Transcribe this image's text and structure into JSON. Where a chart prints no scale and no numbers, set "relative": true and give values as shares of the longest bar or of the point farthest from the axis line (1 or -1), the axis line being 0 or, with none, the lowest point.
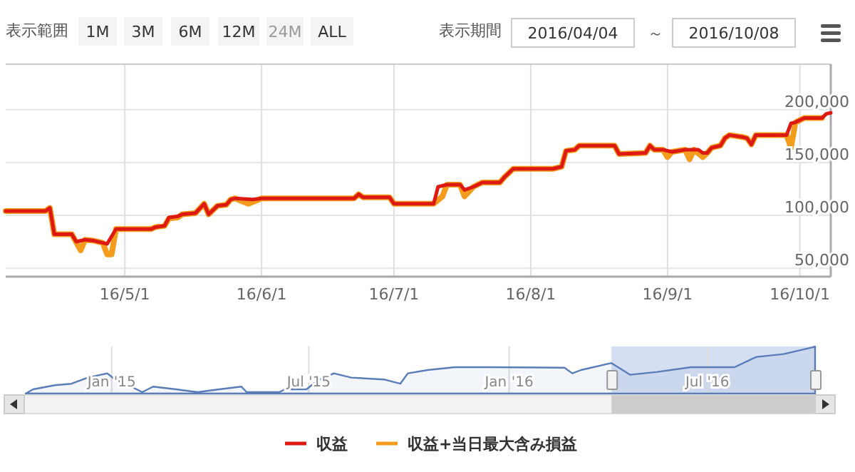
{
  "chart_data": [
    {
      "type": "line",
      "annotations": [
        "表示範囲",
        "1M",
        "3M",
        "6M",
        "12M",
        "24M",
        "ALL",
        "表示期間",
        "2016/04/04",
        "～",
        "2016/10/08"
      ],
      "xlim": [
        "2016-04-04",
        "2016-10-08"
      ],
      "xticks": [
        {
          "value": "2016-05-01",
          "label": "16/5/1"
        },
        {
          "value": "2016-06-01",
          "label": "16/6/1"
        },
        {
          "value": "2016-07-01",
          "label": "16/7/1"
        },
        {
          "value": "2016-08-01",
          "label": "16/8/1"
        },
        {
          "value": "2016-09-01",
          "label": "16/9/1"
        },
        {
          "value": "2016-10-01",
          "label": "16/10/1"
        }
      ],
      "ylim": [
        42000,
        243000
      ],
      "yticks": [
        {
          "value": 50000,
          "label": "50,000"
        },
        {
          "value": 100000,
          "label": "100,000"
        },
        {
          "value": 150000,
          "label": "150,000"
        },
        {
          "value": 200000,
          "label": "200,000"
        }
      ],
      "grid": true,
      "legend": "bottom",
      "series": [
        {
          "name": "収益+当日最大含み損益",
          "color": "#f39c1e",
          "x": [
            "2016-04-04",
            "2016-04-13",
            "2016-04-14",
            "2016-04-15",
            "2016-04-19",
            "2016-04-21",
            "2016-04-22",
            "2016-04-24",
            "2016-04-26",
            "2016-04-27",
            "2016-04-28",
            "2016-04-29",
            "2016-05-07",
            "2016-05-08",
            "2016-05-10",
            "2016-05-11",
            "2016-05-13",
            "2016-05-14",
            "2016-05-17",
            "2016-05-19",
            "2016-05-20",
            "2016-05-22",
            "2016-05-24",
            "2016-05-25",
            "2016-05-26",
            "2016-05-29",
            "2016-06-01",
            "2016-06-22",
            "2016-06-23",
            "2016-06-24",
            "2016-06-30",
            "2016-07-01",
            "2016-07-10",
            "2016-07-12",
            "2016-07-13",
            "2016-07-16",
            "2016-07-17",
            "2016-07-19",
            "2016-07-21",
            "2016-07-25",
            "2016-07-26",
            "2016-07-28",
            "2016-08-06",
            "2016-08-08",
            "2016-08-09",
            "2016-08-11",
            "2016-08-12",
            "2016-08-20",
            "2016-08-21",
            "2016-08-27",
            "2016-08-28",
            "2016-08-29",
            "2016-08-31",
            "2016-09-01",
            "2016-09-02",
            "2016-09-05",
            "2016-09-06",
            "2016-09-07",
            "2016-09-09",
            "2016-09-10",
            "2016-09-11",
            "2016-09-13",
            "2016-09-14",
            "2016-09-15",
            "2016-09-18",
            "2016-09-19",
            "2016-09-20",
            "2016-09-21",
            "2016-09-28",
            "2016-09-29",
            "2016-09-30",
            "2016-10-02",
            "2016-10-06"
          ],
          "values": [
            104000,
            104000,
            107000,
            82000,
            82000,
            67000,
            77000,
            76000,
            74000,
            63000,
            63000,
            87000,
            87000,
            89000,
            90000,
            97000,
            98000,
            101000,
            102000,
            111000,
            101000,
            109000,
            110000,
            115000,
            116000,
            111000,
            116000,
            116000,
            120000,
            117000,
            117000,
            111000,
            111000,
            118000,
            129000,
            129000,
            118000,
            127000,
            131000,
            131000,
            136000,
            144000,
            144000,
            146000,
            161000,
            162000,
            166000,
            166000,
            158000,
            159000,
            166000,
            162000,
            162000,
            155000,
            160000,
            162000,
            153000,
            162000,
            155000,
            159000,
            164000,
            166000,
            173000,
            176000,
            174000,
            173000,
            167000,
            176000,
            176000,
            164000,
            188000,
            192000,
            192000
          ]
        },
        {
          "name": "収益",
          "color": "#dd1a12",
          "x": [
            "2016-04-04",
            "2016-04-13",
            "2016-04-14",
            "2016-04-15",
            "2016-04-19",
            "2016-04-20",
            "2016-04-22",
            "2016-04-24",
            "2016-04-26",
            "2016-04-27",
            "2016-04-29",
            "2016-05-07",
            "2016-05-08",
            "2016-05-10",
            "2016-05-11",
            "2016-05-13",
            "2016-05-14",
            "2016-05-17",
            "2016-05-19",
            "2016-05-20",
            "2016-05-22",
            "2016-05-24",
            "2016-05-25",
            "2016-05-26",
            "2016-05-30",
            "2016-06-01",
            "2016-06-22",
            "2016-06-23",
            "2016-06-24",
            "2016-06-30",
            "2016-07-01",
            "2016-07-10",
            "2016-07-11",
            "2016-07-13",
            "2016-07-16",
            "2016-07-17",
            "2016-07-19",
            "2016-07-21",
            "2016-07-25",
            "2016-07-26",
            "2016-07-28",
            "2016-08-06",
            "2016-08-08",
            "2016-08-09",
            "2016-08-11",
            "2016-08-12",
            "2016-08-20",
            "2016-08-21",
            "2016-08-27",
            "2016-08-28",
            "2016-08-29",
            "2016-08-31",
            "2016-09-02",
            "2016-09-05",
            "2016-09-08",
            "2016-09-09",
            "2016-09-10",
            "2016-09-11",
            "2016-09-13",
            "2016-09-14",
            "2016-09-15",
            "2016-09-18",
            "2016-09-19",
            "2016-09-20",
            "2016-09-21",
            "2016-09-28",
            "2016-09-29",
            "2016-09-30",
            "2016-10-02",
            "2016-10-06",
            "2016-10-07",
            "2016-10-08"
          ],
          "values": [
            104000,
            104000,
            107000,
            82000,
            82000,
            75000,
            77000,
            76000,
            74000,
            73000,
            87000,
            87000,
            89000,
            90000,
            98000,
            99000,
            101000,
            102000,
            111000,
            101000,
            109000,
            110000,
            115000,
            116000,
            115000,
            116000,
            116000,
            120000,
            117000,
            117000,
            111000,
            111000,
            127000,
            129000,
            129000,
            124000,
            127000,
            131000,
            131000,
            136000,
            144000,
            144000,
            146000,
            161000,
            162000,
            166000,
            166000,
            158000,
            159000,
            166000,
            162000,
            162000,
            160000,
            162000,
            162000,
            159000,
            159000,
            164000,
            166000,
            173000,
            176000,
            174000,
            173000,
            167000,
            176000,
            176000,
            187000,
            188000,
            192000,
            192000,
            196000,
            197000
          ]
        }
      ]
    },
    {
      "type": "area",
      "relative": true,
      "tick_labels": "x",
      "xlim": [
        "2014-10-14",
        "2016-10-08"
      ],
      "xticks": [
        {
          "value": "2015-01-01",
          "label": "Jan '15"
        },
        {
          "value": "2015-07-01",
          "label": "Jul '15"
        },
        {
          "value": "2016-01-01",
          "label": "Jan '16"
        },
        {
          "value": "2016-07-01",
          "label": "Jul '16"
        }
      ],
      "grid": "x",
      "bands": [
        {
          "axis": "x",
          "from": "2016-04-04",
          "to": "2016-10-08",
          "color": "#c9d7ee"
        }
      ],
      "series": [
        {
          "color": "#5a7db8",
          "x": [
            "2014-10-14",
            "2014-10-21",
            "2014-11-10",
            "2014-11-25",
            "2014-12-10",
            "2014-12-28",
            "2015-01-04",
            "2015-01-19",
            "2015-01-29",
            "2015-02-08",
            "2015-03-01",
            "2015-03-21",
            "2015-04-10",
            "2015-04-30",
            "2015-05-05",
            "2015-06-04",
            "2015-06-09",
            "2015-06-29",
            "2015-07-09",
            "2015-07-24",
            "2015-08-09",
            "2015-09-08",
            "2015-09-23",
            "2015-09-30",
            "2015-10-18",
            "2015-11-12",
            "2015-12-17",
            "2016-02-21",
            "2016-02-28",
            "2016-03-07",
            "2016-04-04",
            "2016-04-21",
            "2016-05-16",
            "2016-06-16",
            "2016-07-26",
            "2016-08-15",
            "2016-09-09",
            "2016-10-05",
            "2016-10-08"
          ],
          "values": [
            0,
            0.09,
            0.18,
            0.21,
            0.34,
            0.43,
            0.3,
            0.15,
            0.03,
            0.15,
            0.09,
            0.03,
            0.09,
            0.15,
            0.03,
            0.03,
            0.09,
            0.09,
            0.28,
            0.43,
            0.34,
            0.3,
            0.21,
            0.43,
            0.5,
            0.56,
            0.56,
            0.55,
            0.43,
            0.5,
            0.65,
            0.4,
            0.46,
            0.56,
            0.56,
            0.78,
            0.84,
            0.98,
            1
          ]
        }
      ]
    }
  ]
}
